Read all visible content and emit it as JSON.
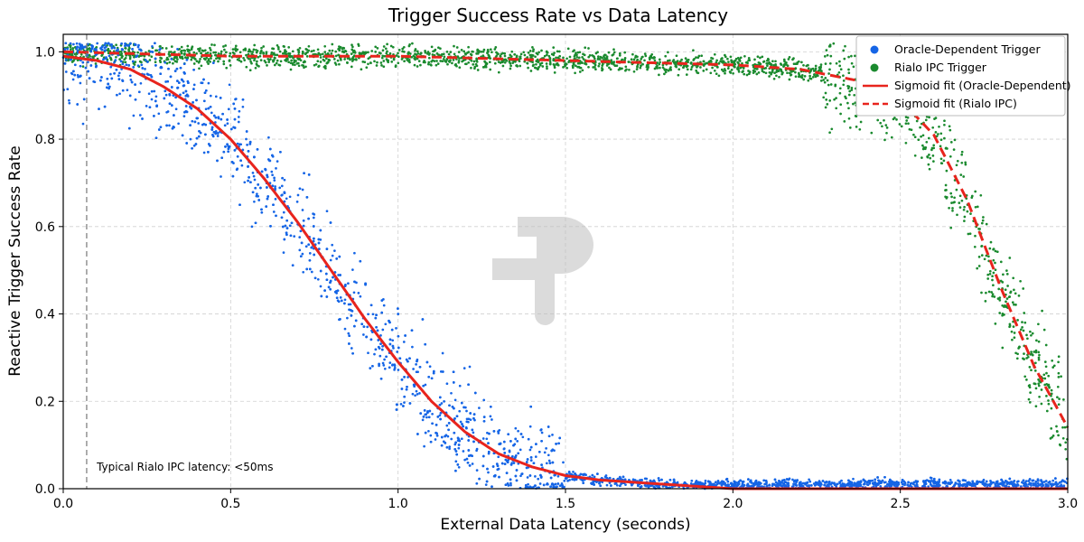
{
  "chart_data": {
    "type": "scatter",
    "title": "Trigger Success Rate vs Data Latency",
    "xlabel": "External Data Latency (seconds)",
    "ylabel": "Reactive Trigger Success Rate",
    "xlim": [
      0.0,
      3.0
    ],
    "ylim": [
      0.0,
      1.04
    ],
    "x_ticks": [
      "0.0",
      "0.5",
      "1.0",
      "1.5",
      "2.0",
      "2.5",
      "3.0"
    ],
    "y_ticks": [
      "0.0",
      "0.2",
      "0.4",
      "0.6",
      "0.8",
      "1.0"
    ],
    "grid": true,
    "legend_position": "top-right",
    "series": [
      {
        "name": "Oracle-Dependent Trigger",
        "kind": "scatter",
        "color": "#1565e6",
        "x": [
          0.0,
          0.1,
          0.2,
          0.3,
          0.4,
          0.5,
          0.6,
          0.7,
          0.8,
          0.9,
          1.0,
          1.1,
          1.2,
          1.3,
          1.4,
          1.5,
          1.6,
          1.8,
          2.0,
          2.5,
          3.0
        ],
        "y": [
          0.99,
          0.98,
          0.96,
          0.92,
          0.87,
          0.8,
          0.71,
          0.61,
          0.5,
          0.39,
          0.29,
          0.2,
          0.13,
          0.08,
          0.05,
          0.03,
          0.02,
          0.01,
          0.01,
          0.01,
          0.01
        ]
      },
      {
        "name": "Rialo IPC Trigger",
        "kind": "scatter",
        "color": "#1a8a2e",
        "x": [
          0.0,
          0.5,
          1.0,
          1.5,
          2.0,
          2.2,
          2.4,
          2.5,
          2.6,
          2.7,
          2.8,
          2.9,
          3.0
        ],
        "y": [
          1.0,
          0.99,
          0.99,
          0.98,
          0.97,
          0.96,
          0.93,
          0.89,
          0.81,
          0.66,
          0.46,
          0.28,
          0.14
        ]
      },
      {
        "name": "Sigmoid fit (Oracle-Dependent)",
        "kind": "line",
        "style": "solid",
        "color": "#e8241d",
        "x": [
          0.0,
          0.1,
          0.2,
          0.3,
          0.4,
          0.5,
          0.6,
          0.7,
          0.8,
          0.9,
          1.0,
          1.1,
          1.2,
          1.3,
          1.4,
          1.5,
          1.6,
          1.8,
          2.0,
          2.5,
          3.0
        ],
        "y": [
          0.99,
          0.98,
          0.96,
          0.92,
          0.87,
          0.8,
          0.71,
          0.61,
          0.5,
          0.39,
          0.29,
          0.2,
          0.13,
          0.08,
          0.05,
          0.03,
          0.02,
          0.01,
          0.0,
          0.0,
          0.0
        ]
      },
      {
        "name": "Sigmoid fit (Rialo IPC)",
        "kind": "line",
        "style": "dashed",
        "color": "#e8241d",
        "x": [
          0.0,
          0.5,
          1.0,
          1.5,
          2.0,
          2.2,
          2.4,
          2.5,
          2.6,
          2.7,
          2.8,
          2.9,
          3.0
        ],
        "y": [
          1.0,
          0.99,
          0.99,
          0.98,
          0.97,
          0.96,
          0.93,
          0.89,
          0.81,
          0.66,
          0.46,
          0.28,
          0.14
        ]
      }
    ],
    "annotations": [
      {
        "type": "vline",
        "x": 0.07,
        "style": "dashed",
        "color": "#777777"
      },
      {
        "type": "text",
        "text": "Typical Rialo IPC latency: <50ms",
        "x": 0.1,
        "y": 0.05
      }
    ]
  }
}
